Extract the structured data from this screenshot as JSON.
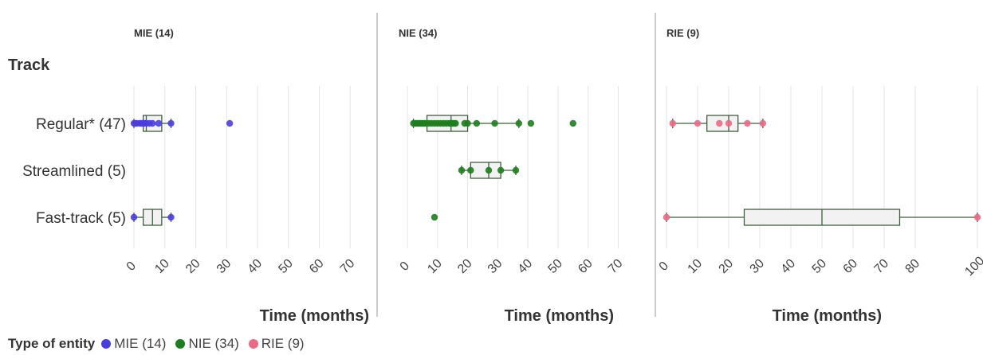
{
  "colors": {
    "MIE": "#4b3ddb",
    "NIE": "#1e7d1e",
    "RIE": "#ea6a85",
    "box_stroke": "#3f5e3f",
    "box_fill": "#f2f2f2",
    "grid": "#e6e6e6",
    "divider": "#999999",
    "text": "#333333"
  },
  "legend": {
    "title": "Type of entity",
    "items": [
      {
        "key": "MIE",
        "label": "MIE (14)"
      },
      {
        "key": "NIE",
        "label": "NIE (34)"
      },
      {
        "key": "RIE",
        "label": "RIE (9)"
      }
    ]
  },
  "chart_data": {
    "type": "box-strip",
    "row_axis_title": "Track",
    "rows": [
      "Regular* (47)",
      "Streamlined (5)",
      "Fast-track (5)"
    ],
    "xlabel": "Time (months)",
    "grid": true,
    "legend_placement": "bottom-left",
    "panels": [
      {
        "key": "MIE",
        "title": "MIE (14)",
        "xlim": [
          0,
          72
        ],
        "ticks": [
          0,
          10,
          20,
          30,
          40,
          50,
          60,
          70
        ],
        "tracks": [
          {
            "row": "Regular* (47)",
            "box": {
              "min": 0,
              "q1": 3,
              "median": 4,
              "q3": 9,
              "max": 12
            },
            "points": [
              0,
              0.5,
              1,
              2,
              2.5,
              3,
              3.5,
              4,
              5,
              6,
              8,
              12,
              31
            ]
          },
          {
            "row": "Streamlined (5)",
            "box": null,
            "points": []
          },
          {
            "row": "Fast-track (5)",
            "box": {
              "min": 0,
              "q1": 3,
              "median": 6,
              "q3": 9,
              "max": 12
            },
            "points": [
              0,
              12
            ]
          }
        ]
      },
      {
        "key": "NIE",
        "title": "NIE (34)",
        "xlim": [
          0,
          72
        ],
        "ticks": [
          0,
          10,
          20,
          30,
          40,
          50,
          60,
          70
        ],
        "tracks": [
          {
            "row": "Regular* (47)",
            "box": {
              "min": 2,
              "q1": 6.5,
              "median": 14.5,
              "q3": 20,
              "max": 37
            },
            "points": [
              2,
              2.5,
              3,
              3.5,
              4,
              4.5,
              5,
              5.5,
              6,
              7,
              8,
              9,
              10,
              11,
              12,
              13,
              14,
              14.5,
              15,
              15.5,
              16,
              19,
              20,
              23,
              29,
              37,
              41,
              55
            ]
          },
          {
            "row": "Streamlined (5)",
            "box": {
              "min": 18,
              "q1": 21,
              "median": 27,
              "q3": 31,
              "max": 36
            },
            "points": [
              18,
              21,
              27,
              31,
              36
            ]
          },
          {
            "row": "Fast-track (5)",
            "box": null,
            "points": [
              9
            ]
          }
        ]
      },
      {
        "key": "RIE",
        "title": "RIE (9)",
        "xlim": [
          0,
          100
        ],
        "ticks": [
          0,
          10,
          20,
          30,
          40,
          50,
          60,
          70,
          80,
          100
        ],
        "tracks": [
          {
            "row": "Regular* (47)",
            "box": {
              "min": 2,
              "q1": 13,
              "median": 20,
              "q3": 23,
              "max": 31
            },
            "points": [
              2,
              10,
              17,
              20,
              26,
              31
            ]
          },
          {
            "row": "Streamlined (5)",
            "box": null,
            "points": []
          },
          {
            "row": "Fast-track (5)",
            "box": {
              "min": 0,
              "q1": 25,
              "median": 50,
              "q3": 75,
              "max": 100
            },
            "points": [
              0,
              100
            ]
          }
        ]
      }
    ]
  }
}
